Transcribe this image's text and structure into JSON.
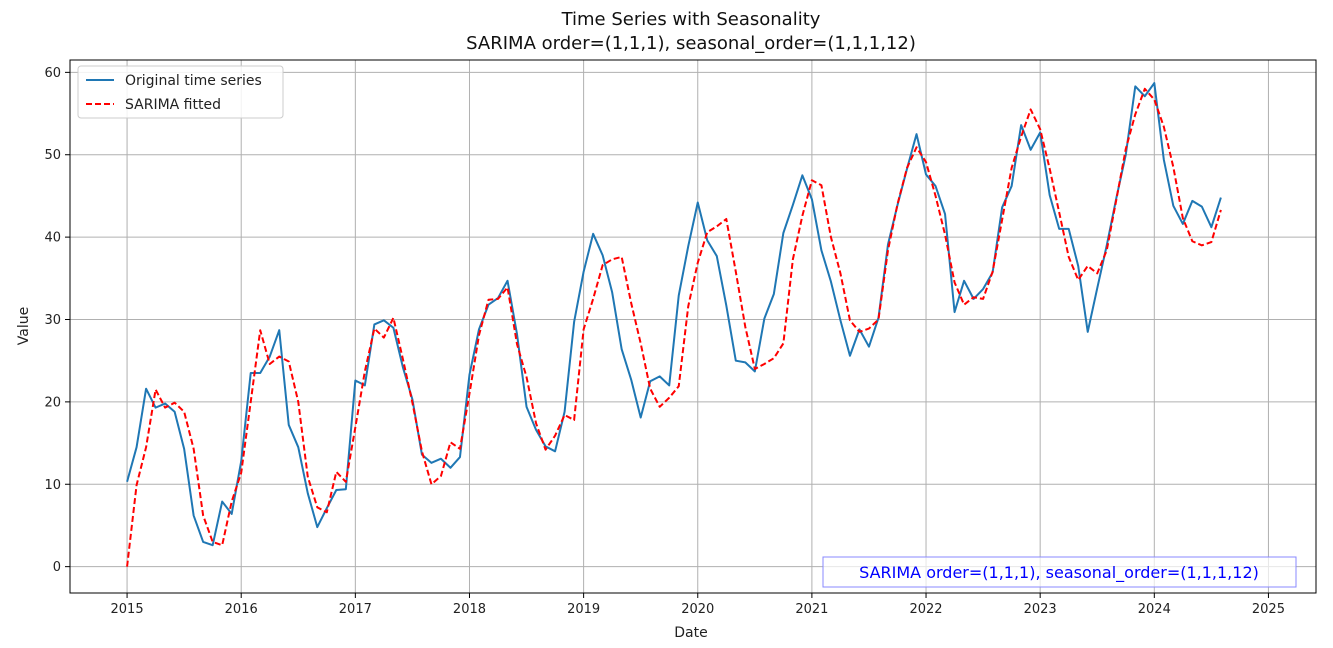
{
  "chart_data": {
    "type": "line",
    "title": "Time Series with Seasonality",
    "subtitle": "SARIMA order=(1,1,1), seasonal_order=(1,1,1,12)",
    "xlabel": "Date",
    "ylabel": "Value",
    "x_start": "2015-01",
    "x_ticks": [
      "2015",
      "2016",
      "2017",
      "2018",
      "2019",
      "2020",
      "2021",
      "2022",
      "2023",
      "2024",
      "2025"
    ],
    "y_ticks": [
      0,
      10,
      20,
      30,
      40,
      50,
      60
    ],
    "xlim": [
      "2014-07",
      "2025-06"
    ],
    "ylim": [
      -3.2,
      61.5
    ],
    "grid": true,
    "legend_position": "top-left",
    "annotation": "SARIMA order=(1,1,1), seasonal_order=(1,1,1,12)",
    "annotation_color": "#0000ff",
    "series": [
      {
        "name": "Original time series",
        "color": "#1f77b4",
        "style": "solid",
        "values": [
          10.3,
          14.5,
          21.6,
          19.3,
          19.8,
          18.8,
          14.3,
          6.2,
          3.0,
          2.6,
          7.9,
          6.4,
          12.8,
          23.5,
          23.5,
          25.5,
          28.7,
          17.2,
          14.5,
          8.9,
          4.8,
          7.1,
          9.3,
          9.4,
          22.6,
          22.0,
          29.4,
          29.9,
          29.0,
          24.2,
          20.3,
          13.6,
          12.6,
          13.1,
          12.0,
          13.3,
          23.3,
          28.8,
          31.8,
          32.6,
          34.7,
          28.2,
          19.4,
          16.6,
          14.6,
          14.0,
          18.8,
          29.7,
          35.8,
          40.4,
          37.8,
          33.3,
          26.4,
          22.7,
          18.1,
          22.5,
          23.1,
          22.0,
          32.9,
          38.9,
          44.2,
          39.6,
          37.7,
          31.7,
          25.0,
          24.8,
          23.7,
          30.1,
          33.1,
          40.5,
          43.9,
          47.5,
          44.6,
          38.4,
          34.6,
          29.9,
          25.6,
          28.8,
          26.7,
          30.2,
          39.1,
          43.9,
          48.3,
          52.5,
          47.6,
          46.2,
          42.8,
          30.9,
          34.7,
          32.5,
          33.7,
          35.7,
          43.6,
          46.2,
          53.6,
          50.6,
          52.7,
          45.1,
          41.0,
          41.0,
          36.5,
          28.5,
          33.8,
          39.0,
          44.7,
          50.0,
          58.3,
          57.1,
          58.7,
          49.4,
          43.8,
          41.6,
          44.4,
          43.7,
          41.2,
          44.8
        ]
      },
      {
        "name": "SARIMA fitted",
        "color": "#ff0000",
        "style": "dashed",
        "values": [
          0.0,
          9.9,
          14.5,
          21.5,
          19.3,
          19.9,
          18.8,
          14.3,
          6.2,
          3.0,
          2.6,
          7.9,
          11.4,
          20.0,
          28.7,
          24.6,
          25.5,
          24.9,
          20.0,
          10.9,
          7.2,
          6.6,
          11.5,
          10.3,
          16.9,
          23.7,
          28.9,
          27.8,
          30.2,
          25.2,
          19.9,
          14.0,
          10.0,
          11.0,
          15.1,
          14.3,
          21.0,
          28.1,
          32.4,
          32.5,
          33.9,
          27.0,
          23.0,
          17.4,
          14.2,
          15.9,
          18.4,
          17.8,
          28.8,
          32.5,
          36.6,
          37.3,
          37.6,
          32.0,
          27.1,
          21.6,
          19.4,
          20.5,
          21.9,
          31.6,
          36.9,
          40.6,
          41.3,
          42.2,
          35.8,
          29.1,
          24.0,
          24.6,
          25.3,
          27.1,
          37.3,
          42.6,
          46.9,
          46.3,
          40.0,
          35.6,
          29.9,
          28.5,
          28.9,
          30.0,
          38.4,
          44.0,
          48.4,
          50.9,
          49.1,
          45.0,
          40.3,
          34.5,
          31.8,
          32.7,
          32.5,
          35.8,
          42.1,
          48.4,
          52.2,
          55.5,
          53.1,
          48.3,
          43.0,
          37.6,
          34.8,
          36.5,
          35.6,
          38.4,
          44.5,
          50.7,
          54.9,
          58.0,
          56.7,
          53.4,
          48.5,
          42.3,
          39.5,
          39.0,
          39.4,
          43.3
        ]
      }
    ]
  }
}
